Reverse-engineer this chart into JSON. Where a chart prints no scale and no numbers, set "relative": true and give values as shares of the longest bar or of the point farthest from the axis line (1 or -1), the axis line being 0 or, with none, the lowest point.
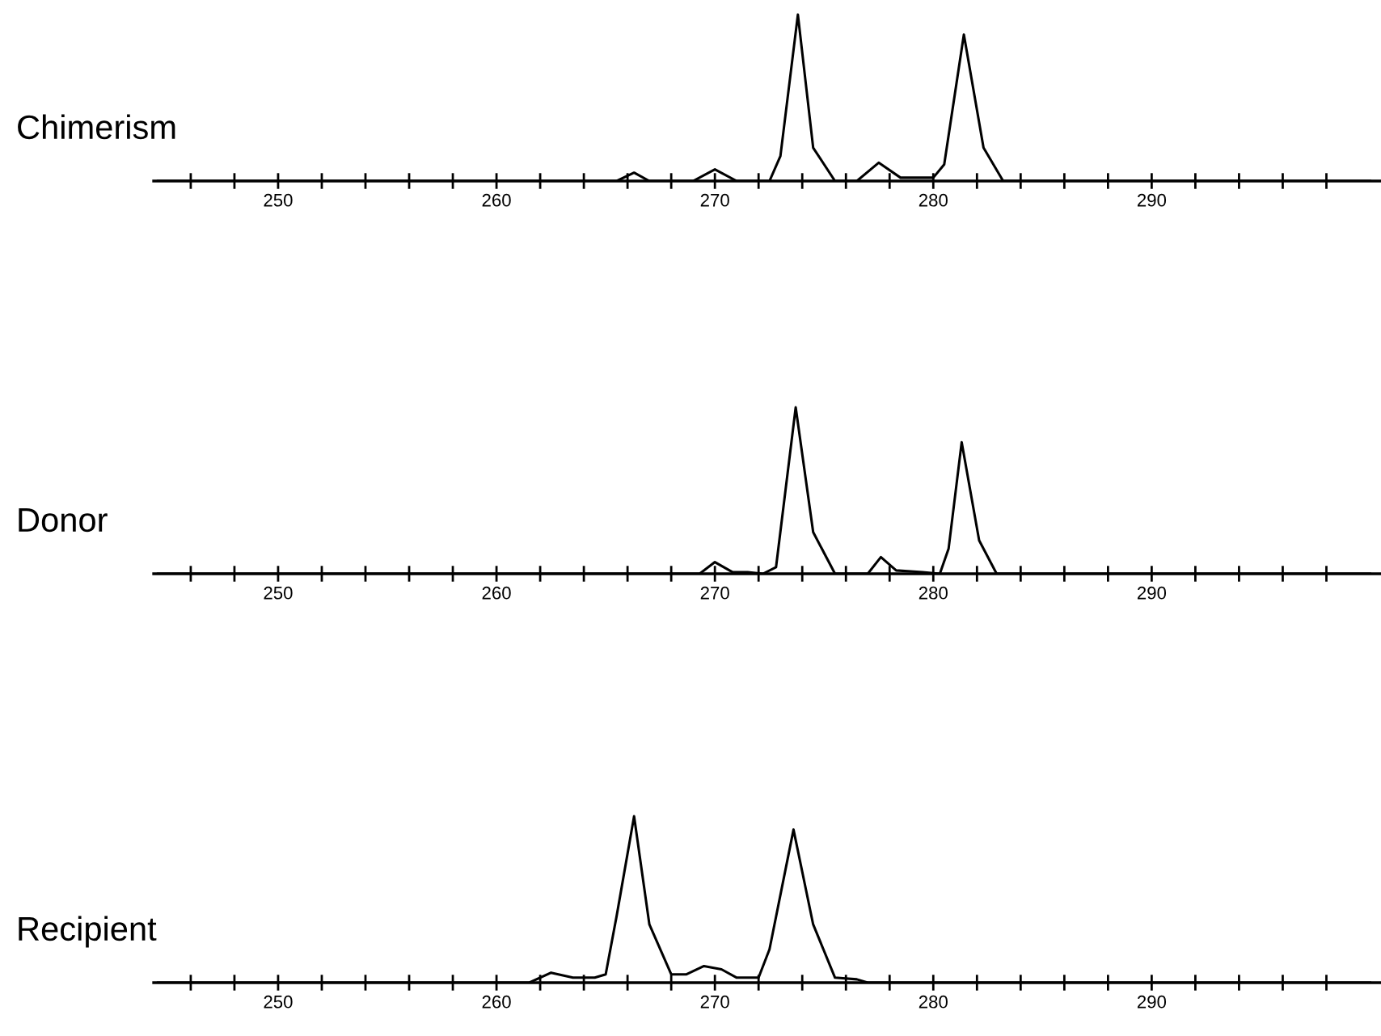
{
  "chart_data": [
    {
      "type": "line",
      "title": "Chimerism",
      "relative": true,
      "xlim": [
        244.3,
        300.5
      ],
      "xticks": [
        {
          "value": 246,
          "label": null
        },
        {
          "value": 248,
          "label": null
        },
        250,
        {
          "value": 252,
          "label": null
        },
        {
          "value": 254,
          "label": null
        },
        {
          "value": 256,
          "label": null
        },
        {
          "value": 258,
          "label": null
        },
        260,
        {
          "value": 262,
          "label": null
        },
        {
          "value": 264,
          "label": null
        },
        {
          "value": 266,
          "label": null
        },
        {
          "value": 268,
          "label": null
        },
        270,
        {
          "value": 272,
          "label": null
        },
        {
          "value": 274,
          "label": null
        },
        {
          "value": 276,
          "label": null
        },
        {
          "value": 278,
          "label": null
        },
        280,
        {
          "value": 282,
          "label": null
        },
        {
          "value": 284,
          "label": null
        },
        {
          "value": 286,
          "label": null
        },
        {
          "value": 288,
          "label": null
        },
        290,
        {
          "value": 292,
          "label": null
        },
        {
          "value": 294,
          "label": null
        },
        {
          "value": 296,
          "label": null
        },
        {
          "value": 298,
          "label": null
        }
      ],
      "series": [
        {
          "color": "#000000",
          "x": [
            244.5,
            265.5,
            266.3,
            267,
            269,
            270,
            271,
            272.5,
            273,
            273.8,
            274.5,
            275.5,
            276.5,
            277.5,
            278.5,
            280,
            280.5,
            281.4,
            282.3,
            283.2,
            300
          ],
          "values": [
            0,
            0,
            0.05,
            0,
            0,
            0.07,
            0,
            0,
            0.15,
            1.0,
            0.2,
            0,
            0,
            0.11,
            0.02,
            0.02,
            0.1,
            0.88,
            0.2,
            0,
            0
          ]
        }
      ]
    },
    {
      "type": "line",
      "title": "Donor",
      "relative": true,
      "xlim": [
        244.3,
        300.5
      ],
      "xticks": [
        {
          "value": 246,
          "label": null
        },
        {
          "value": 248,
          "label": null
        },
        250,
        {
          "value": 252,
          "label": null
        },
        {
          "value": 254,
          "label": null
        },
        {
          "value": 256,
          "label": null
        },
        {
          "value": 258,
          "label": null
        },
        260,
        {
          "value": 262,
          "label": null
        },
        {
          "value": 264,
          "label": null
        },
        {
          "value": 266,
          "label": null
        },
        {
          "value": 268,
          "label": null
        },
        270,
        {
          "value": 272,
          "label": null
        },
        {
          "value": 274,
          "label": null
        },
        {
          "value": 276,
          "label": null
        },
        {
          "value": 278,
          "label": null
        },
        280,
        {
          "value": 282,
          "label": null
        },
        {
          "value": 284,
          "label": null
        },
        {
          "value": 286,
          "label": null
        },
        {
          "value": 288,
          "label": null
        },
        290,
        {
          "value": 292,
          "label": null
        },
        {
          "value": 294,
          "label": null
        },
        {
          "value": 296,
          "label": null
        },
        {
          "value": 298,
          "label": null
        }
      ],
      "series": [
        {
          "color": "#000000",
          "x": [
            244.5,
            269.3,
            270,
            270.8,
            271.5,
            272.2,
            272.8,
            273.7,
            274.5,
            275.5,
            277,
            277.6,
            278.3,
            279.5,
            280.3,
            280.7,
            281.3,
            282.1,
            282.9,
            300
          ],
          "values": [
            0,
            0,
            0.07,
            0.01,
            0.01,
            0,
            0.04,
            1.0,
            0.25,
            0,
            0,
            0.1,
            0.02,
            0.01,
            0,
            0.15,
            0.79,
            0.2,
            0,
            0
          ]
        }
      ]
    },
    {
      "type": "line",
      "title": "Recipient",
      "relative": true,
      "xlim": [
        244.3,
        300.5
      ],
      "xticks": [
        {
          "value": 246,
          "label": null
        },
        {
          "value": 248,
          "label": null
        },
        250,
        {
          "value": 252,
          "label": null
        },
        {
          "value": 254,
          "label": null
        },
        {
          "value": 256,
          "label": null
        },
        {
          "value": 258,
          "label": null
        },
        260,
        {
          "value": 262,
          "label": null
        },
        {
          "value": 264,
          "label": null
        },
        {
          "value": 266,
          "label": null
        },
        {
          "value": 268,
          "label": null
        },
        270,
        {
          "value": 272,
          "label": null
        },
        {
          "value": 274,
          "label": null
        },
        {
          "value": 276,
          "label": null
        },
        {
          "value": 278,
          "label": null
        },
        280,
        {
          "value": 282,
          "label": null
        },
        {
          "value": 284,
          "label": null
        },
        {
          "value": 286,
          "label": null
        },
        {
          "value": 288,
          "label": null
        },
        290,
        {
          "value": 292,
          "label": null
        },
        {
          "value": 294,
          "label": null
        },
        {
          "value": 296,
          "label": null
        },
        {
          "value": 298,
          "label": null
        }
      ],
      "series": [
        {
          "color": "#000000",
          "x": [
            244.5,
            261.5,
            262.5,
            263.5,
            264.5,
            265,
            265.5,
            266.3,
            267,
            268,
            268.7,
            269.5,
            270.3,
            271,
            272,
            272.5,
            273.6,
            274.5,
            275.5,
            276.5,
            277,
            300
          ],
          "values": [
            0,
            0,
            0.06,
            0.03,
            0.03,
            0.05,
            0.4,
            1.0,
            0.35,
            0.05,
            0.05,
            0.1,
            0.08,
            0.03,
            0.03,
            0.2,
            0.92,
            0.35,
            0.03,
            0.02,
            0,
            0
          ]
        }
      ]
    }
  ]
}
